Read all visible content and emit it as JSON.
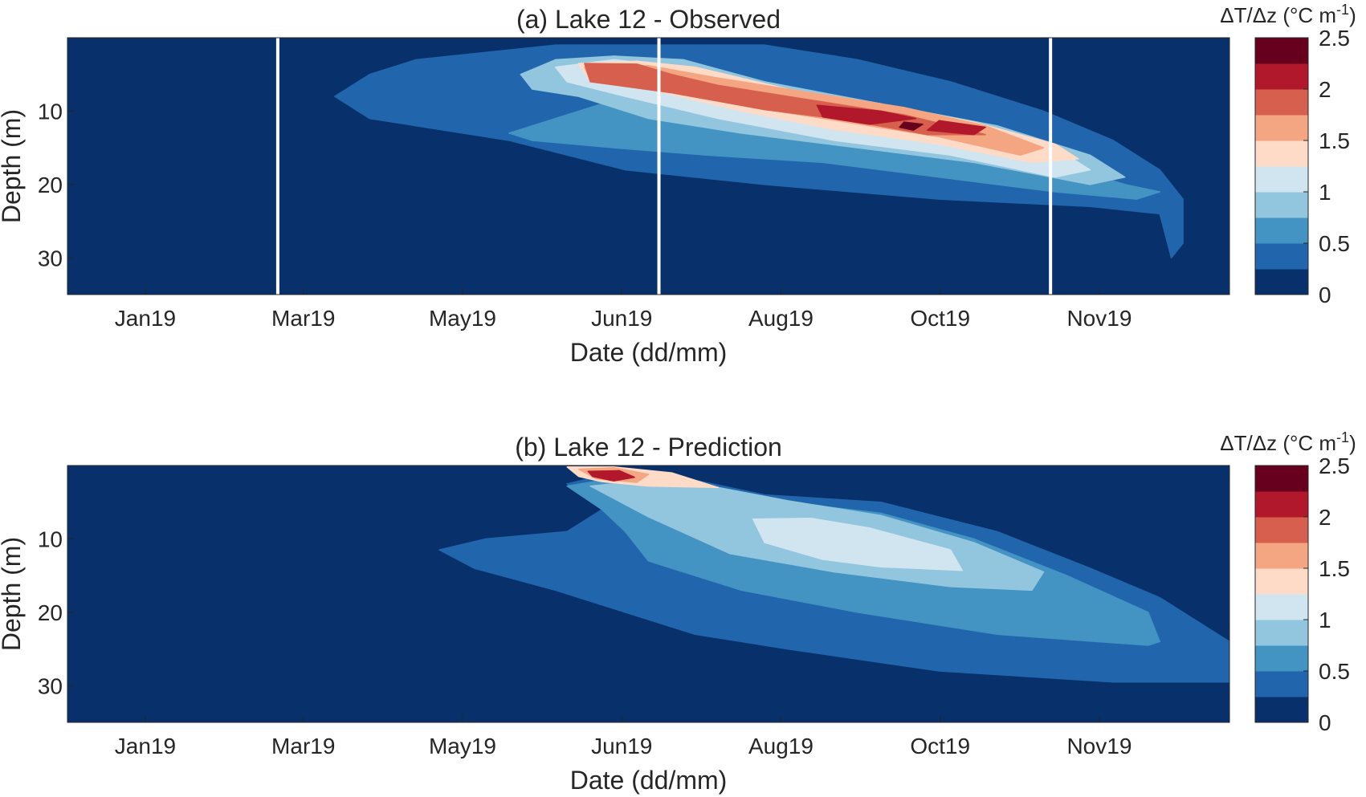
{
  "chart_data": [
    {
      "type": "heatmap",
      "panel": "a",
      "title": "(a) Lake 12 - Observed",
      "xlabel": "Date (dd/mm)",
      "ylabel": "Depth (m)",
      "xticks": [
        "Jan19",
        "Mar19",
        "May19",
        "Jun19",
        "Aug19",
        "Oct19",
        "Nov19"
      ],
      "yticks": [
        10,
        20,
        30
      ],
      "ylim": [
        0,
        35
      ],
      "y_reversed": true,
      "colorbar": {
        "label_main": "ΔT/Δz (°C m",
        "label_sup": "-1",
        "label_close": ")",
        "ticks": [
          "0",
          "0.5",
          "1",
          "1.5",
          "2",
          "2.5"
        ],
        "levels": [
          "#08306b",
          "#2166ac",
          "#4393c3",
          "#92c5de",
          "#d1e5f0",
          "#fddbc7",
          "#f4a582",
          "#d6604d",
          "#b2182b",
          "#67001f"
        ]
      },
      "vertical_markers_fraction_of_x": [
        0.181,
        0.509,
        0.846
      ],
      "gradient_regions": [
        {
          "level": 1,
          "points": [
            [
              0.23,
              8
            ],
            [
              0.26,
              5
            ],
            [
              0.3,
              3
            ],
            [
              0.36,
              2
            ],
            [
              0.42,
              1
            ],
            [
              0.5,
              1
            ],
            [
              0.6,
              1
            ],
            [
              0.68,
              3
            ],
            [
              0.76,
              6
            ],
            [
              0.84,
              10
            ],
            [
              0.9,
              14
            ],
            [
              0.94,
              18
            ],
            [
              0.96,
              22
            ],
            [
              0.96,
              28
            ],
            [
              0.95,
              30
            ],
            [
              0.94,
              24
            ],
            [
              0.88,
              23
            ],
            [
              0.75,
              22
            ],
            [
              0.6,
              20
            ],
            [
              0.48,
              18
            ],
            [
              0.38,
              14
            ],
            [
              0.3,
              12
            ],
            [
              0.26,
              11
            ]
          ]
        },
        {
          "level": 2,
          "points": [
            [
              0.38,
              13
            ],
            [
              0.42,
              11
            ],
            [
              0.46,
              9
            ],
            [
              0.5,
              8
            ],
            [
              0.6,
              9
            ],
            [
              0.7,
              11
            ],
            [
              0.8,
              14
            ],
            [
              0.87,
              18
            ],
            [
              0.91,
              20
            ],
            [
              0.94,
              21
            ],
            [
              0.92,
              22
            ],
            [
              0.85,
              21
            ],
            [
              0.75,
              19
            ],
            [
              0.65,
              17
            ],
            [
              0.55,
              16
            ],
            [
              0.47,
              15
            ],
            [
              0.4,
              14
            ]
          ]
        },
        {
          "level": 3,
          "points": [
            [
              0.39,
              5
            ],
            [
              0.42,
              3
            ],
            [
              0.47,
              2.5
            ],
            [
              0.53,
              3
            ],
            [
              0.6,
              6
            ],
            [
              0.7,
              9
            ],
            [
              0.8,
              12
            ],
            [
              0.88,
              16
            ],
            [
              0.91,
              19
            ],
            [
              0.88,
              20
            ],
            [
              0.78,
              17
            ],
            [
              0.68,
              15
            ],
            [
              0.58,
              13
            ],
            [
              0.5,
              11
            ],
            [
              0.44,
              8
            ],
            [
              0.4,
              7
            ]
          ]
        },
        {
          "level": 4,
          "points": [
            [
              0.42,
              4
            ],
            [
              0.47,
              3
            ],
            [
              0.53,
              4
            ],
            [
              0.62,
              7
            ],
            [
              0.72,
              10
            ],
            [
              0.8,
              13
            ],
            [
              0.86,
              16
            ],
            [
              0.88,
              18
            ],
            [
              0.85,
              19
            ],
            [
              0.76,
              16
            ],
            [
              0.66,
              14
            ],
            [
              0.56,
              11
            ],
            [
              0.48,
              8
            ],
            [
              0.43,
              6
            ]
          ]
        },
        {
          "level": 5,
          "points": [
            [
              0.44,
              3.5
            ],
            [
              0.49,
              3.2
            ],
            [
              0.54,
              4
            ],
            [
              0.62,
              7
            ],
            [
              0.7,
              9
            ],
            [
              0.78,
              11.5
            ],
            [
              0.85,
              14.5
            ],
            [
              0.87,
              16.5
            ],
            [
              0.83,
              17
            ],
            [
              0.75,
              14.5
            ],
            [
              0.66,
              12.5
            ],
            [
              0.58,
              10
            ],
            [
              0.5,
              7
            ],
            [
              0.45,
              6
            ]
          ]
        },
        {
          "level": 6,
          "points": [
            [
              0.445,
              4
            ],
            [
              0.5,
              3.8
            ],
            [
              0.56,
              5.5
            ],
            [
              0.64,
              7.5
            ],
            [
              0.72,
              9.5
            ],
            [
              0.79,
              12
            ],
            [
              0.84,
              15
            ],
            [
              0.82,
              16
            ],
            [
              0.75,
              13.5
            ],
            [
              0.67,
              11.5
            ],
            [
              0.59,
              9.5
            ],
            [
              0.51,
              6.8
            ],
            [
              0.45,
              5.8
            ]
          ]
        },
        {
          "level": 7,
          "points": [
            [
              0.445,
              3.5
            ],
            [
              0.49,
              3.6
            ],
            [
              0.52,
              5
            ],
            [
              0.56,
              6.5
            ],
            [
              0.64,
              8.5
            ],
            [
              0.72,
              10.5
            ],
            [
              0.79,
              13.2
            ],
            [
              0.74,
              13.2
            ],
            [
              0.67,
              11.2
            ],
            [
              0.6,
              9.8
            ],
            [
              0.52,
              7.5
            ],
            [
              0.45,
              6
            ]
          ]
        },
        {
          "level": 8,
          "points": [
            [
              0.645,
              9.2
            ],
            [
              0.7,
              10
            ],
            [
              0.73,
              11
            ],
            [
              0.69,
              11.8
            ],
            [
              0.65,
              10.8
            ]
          ]
        },
        {
          "level": 8,
          "points": [
            [
              0.75,
              11.3
            ],
            [
              0.79,
              12.2
            ],
            [
              0.78,
              13.2
            ],
            [
              0.74,
              12.6
            ]
          ]
        },
        {
          "level": 9,
          "points": [
            [
              0.72,
              11.5
            ],
            [
              0.736,
              11.8
            ],
            [
              0.728,
              12.6
            ],
            [
              0.716,
              12.2
            ]
          ]
        }
      ]
    },
    {
      "type": "heatmap",
      "panel": "b",
      "title": "(b) Lake 12 - Prediction",
      "xlabel": "Date (dd/mm)",
      "ylabel": "Depth (m)",
      "xticks": [
        "Jan19",
        "Mar19",
        "May19",
        "Jun19",
        "Aug19",
        "Oct19",
        "Nov19"
      ],
      "yticks": [
        10,
        20,
        30
      ],
      "ylim": [
        0,
        35
      ],
      "y_reversed": true,
      "colorbar": {
        "label_main": "ΔT/Δz (°C m",
        "label_sup": "-1",
        "label_close": ")",
        "ticks": [
          "0",
          "0.5",
          "1",
          "1.5",
          "2",
          "2.5"
        ],
        "levels": [
          "#08306b",
          "#2166ac",
          "#4393c3",
          "#92c5de",
          "#d1e5f0",
          "#fddbc7",
          "#f4a582",
          "#d6604d",
          "#b2182b",
          "#67001f"
        ]
      },
      "vertical_markers_fraction_of_x": [],
      "gradient_regions": [
        {
          "level": 1,
          "points": [
            [
              0.32,
              11.5
            ],
            [
              0.36,
              10
            ],
            [
              0.43,
              9
            ],
            [
              0.46,
              6
            ],
            [
              0.43,
              2.5
            ],
            [
              0.47,
              1
            ],
            [
              0.54,
              2
            ],
            [
              0.6,
              4
            ],
            [
              0.7,
              5
            ],
            [
              0.8,
              9
            ],
            [
              0.88,
              14
            ],
            [
              0.94,
              18
            ],
            [
              1.0,
              24
            ],
            [
              1.0,
              29.5
            ],
            [
              0.9,
              29.5
            ],
            [
              0.75,
              28
            ],
            [
              0.62,
              25
            ],
            [
              0.54,
              23
            ],
            [
              0.48,
              20
            ],
            [
              0.42,
              17
            ],
            [
              0.35,
              14
            ]
          ]
        },
        {
          "level": 2,
          "points": [
            [
              0.43,
              2.8
            ],
            [
              0.48,
              1.5
            ],
            [
              0.54,
              2.5
            ],
            [
              0.62,
              5
            ],
            [
              0.7,
              6.5
            ],
            [
              0.78,
              10
            ],
            [
              0.86,
              15
            ],
            [
              0.93,
              20
            ],
            [
              0.94,
              24
            ],
            [
              0.93,
              24.5
            ],
            [
              0.8,
              23
            ],
            [
              0.68,
              20
            ],
            [
              0.58,
              17
            ],
            [
              0.5,
              13
            ],
            [
              0.48,
              9
            ],
            [
              0.46,
              6
            ]
          ]
        },
        {
          "level": 3,
          "points": [
            [
              0.45,
              2.8
            ],
            [
              0.5,
              2
            ],
            [
              0.56,
              3
            ],
            [
              0.62,
              4.8
            ],
            [
              0.7,
              6.8
            ],
            [
              0.78,
              10.5
            ],
            [
              0.84,
              14.5
            ],
            [
              0.83,
              17
            ],
            [
              0.76,
              16.5
            ],
            [
              0.66,
              14.5
            ],
            [
              0.57,
              12
            ],
            [
              0.5,
              7
            ]
          ]
        },
        {
          "level": 4,
          "points": [
            [
              0.59,
              7.3
            ],
            [
              0.64,
              7.2
            ],
            [
              0.69,
              8.5
            ],
            [
              0.76,
              11.5
            ],
            [
              0.77,
              14.3
            ],
            [
              0.7,
              13.8
            ],
            [
              0.65,
              12.8
            ],
            [
              0.6,
              10.5
            ]
          ]
        },
        {
          "level": 5,
          "points": [
            [
              0.43,
              0.2
            ],
            [
              0.47,
              0.2
            ],
            [
              0.52,
              1
            ],
            [
              0.56,
              3
            ],
            [
              0.5,
              2.8
            ],
            [
              0.46,
              2.2
            ],
            [
              0.44,
              1.5
            ]
          ]
        },
        {
          "level": 6,
          "points": [
            [
              0.44,
              0.5
            ],
            [
              0.47,
              0.3
            ],
            [
              0.5,
              1.2
            ],
            [
              0.49,
              2.3
            ],
            [
              0.455,
              1.8
            ]
          ]
        },
        {
          "level": 8,
          "points": [
            [
              0.448,
              0.8
            ],
            [
              0.475,
              0.7
            ],
            [
              0.488,
              1.6
            ],
            [
              0.47,
              2.1
            ],
            [
              0.452,
              1.5
            ]
          ]
        }
      ]
    }
  ]
}
